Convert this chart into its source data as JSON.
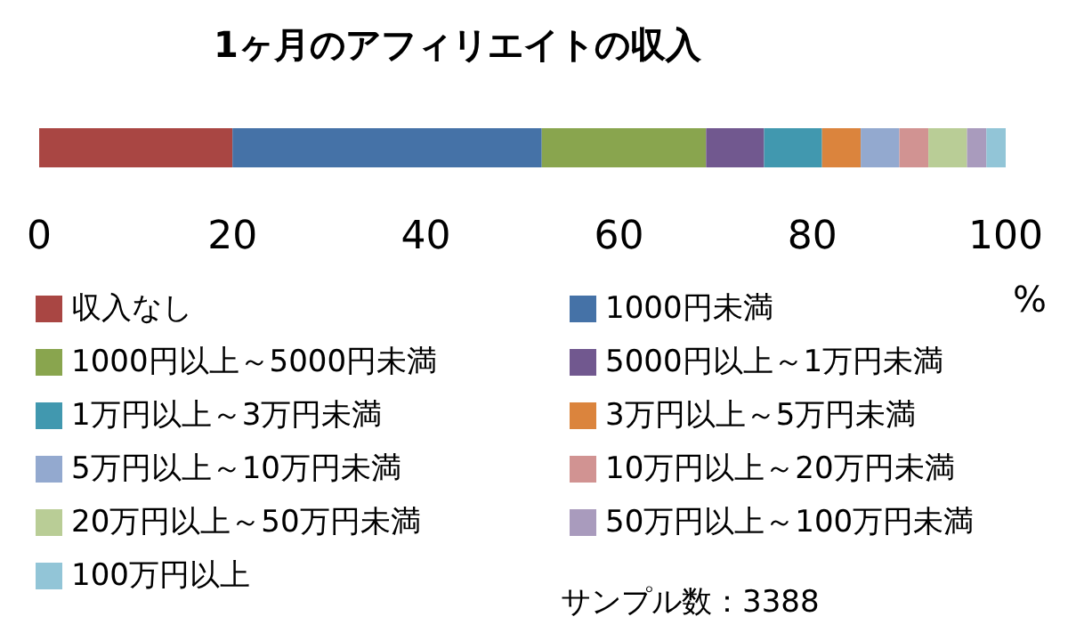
{
  "chart_data": {
    "type": "bar",
    "orientation": "horizontal",
    "stacked": true,
    "title": "1ヶ月のアフィリエイトの収入",
    "xlabel": "%",
    "categories": [
      null
    ],
    "series": [
      {
        "name": "収入なし",
        "color": "#a94643",
        "values": [
          20
        ]
      },
      {
        "name": "1000円未満",
        "color": "#4572a7",
        "values": [
          32
        ]
      },
      {
        "name": "1000円以上～5000円未満",
        "color": "#89a54e",
        "values": [
          17
        ]
      },
      {
        "name": "5000円以上～1万円未満",
        "color": "#71588f",
        "values": [
          6
        ]
      },
      {
        "name": "1万円以上～3万円未満",
        "color": "#4198af",
        "values": [
          6
        ]
      },
      {
        "name": "3万円以上～5万円未満",
        "color": "#db843d",
        "values": [
          4
        ]
      },
      {
        "name": "5万円以上～10万円未満",
        "color": "#93a9cf",
        "values": [
          4
        ]
      },
      {
        "name": "10万円以上～20万円未満",
        "color": "#d19392",
        "values": [
          3
        ]
      },
      {
        "name": "20万円以上～50万円未満",
        "color": "#b9cd96",
        "values": [
          4
        ]
      },
      {
        "name": "50万円以上～100万円未満",
        "color": "#a99bbd",
        "values": [
          2
        ]
      },
      {
        "name": "100万円以上",
        "color": "#92c5d7",
        "values": [
          2
        ]
      }
    ],
    "xlim": [
      0,
      100
    ],
    "xticks": [
      0,
      20,
      40,
      60,
      80,
      100
    ],
    "grid": false,
    "legend": "bottom",
    "annotations": [
      "サンプル数：3388"
    ]
  }
}
